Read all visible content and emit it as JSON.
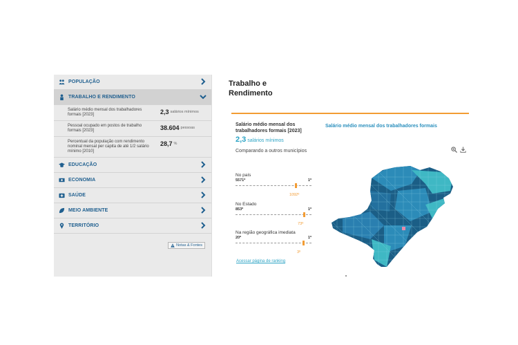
{
  "sidebar": {
    "sections": [
      {
        "label": "POPULAÇÃO",
        "icon": "people-icon"
      },
      {
        "label": "TRABALHO E RENDIMENTO",
        "icon": "worker-icon"
      },
      {
        "label": "EDUCAÇÃO",
        "icon": "graduation-cap-icon"
      },
      {
        "label": "ECONOMIA",
        "icon": "money-icon"
      },
      {
        "label": "SAÚDE",
        "icon": "health-kit-icon"
      },
      {
        "label": "MEIO AMBIENTE",
        "icon": "leaf-icon"
      },
      {
        "label": "TERRITÓRIO",
        "icon": "map-pin-icon"
      }
    ],
    "rows": [
      {
        "desc": "Salário médio mensal dos trabalhadores formais [2023]",
        "value": "2,3",
        "unit": "salários mínimos"
      },
      {
        "desc": "Pessoal ocupado em postos de trabalho formais [2023]",
        "value": "38.604",
        "unit": "pessoas"
      },
      {
        "desc": "Percentual da população com rendimento nominal mensal per capita de até 1/2 salário mínimo [2010]",
        "value": "28,7",
        "unit": "%"
      }
    ],
    "notes_label": "Notas & Fontes"
  },
  "panel": {
    "title": "Trabalho e Rendimento",
    "indicator_title": "Salário médio mensal dos trabalhadores formais [2023]",
    "indicator_value": "2,3",
    "indicator_unit": "salários mínimos",
    "comparing": "Comparando a outros municípios",
    "rankings": [
      {
        "label": "No país",
        "total": "5571º",
        "first": "1º",
        "position": "1092º",
        "fraction": 0.8
      },
      {
        "label": "No Estado",
        "total": "853º",
        "first": "1º",
        "position": "73º",
        "fraction": 0.91
      },
      {
        "label": "Na região geográfica imediata",
        "total": "20º",
        "first": "1º",
        "position": "3º",
        "fraction": 0.9
      }
    ],
    "ranking_link": "Acessar página de ranking",
    "map_title": "Salário médio mensal dos trabalhadores formais",
    "colors": {
      "accent": "#f39c33",
      "link": "#2aa3c4",
      "nav_text": "#1f5f8f",
      "map_dark": "#1b5e86",
      "map_mid": "#2c8bb8",
      "map_light": "#3fb8c4"
    }
  }
}
